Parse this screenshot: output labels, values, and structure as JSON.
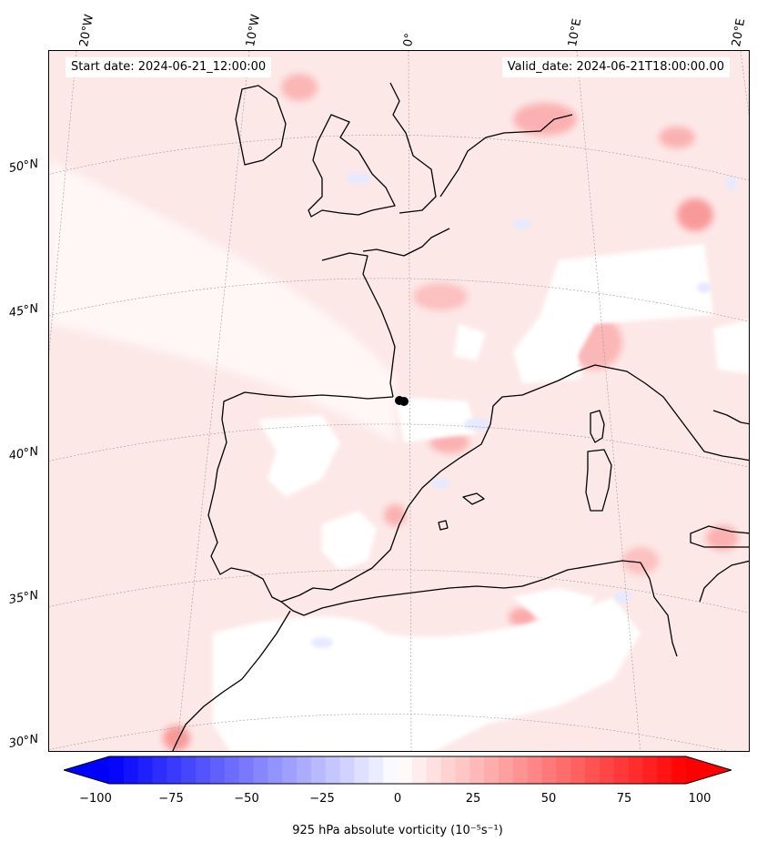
{
  "header": {
    "start_date": "Start date: 2024-06-21_12:00:00",
    "valid_date": "Valid_date: 2024-06-21T18:00:00.00"
  },
  "lon_labels": [
    "20°W",
    "10°W",
    "0°",
    "10°E",
    "20°E"
  ],
  "lat_labels": [
    "50°N",
    "45°N",
    "40°N",
    "35°N",
    "30°N"
  ],
  "colorbar": {
    "ticks": [
      "−100",
      "−75",
      "−50",
      "−25",
      "0",
      "25",
      "50",
      "75",
      "100"
    ],
    "title": "925 hPa absolute vorticity (10⁻⁵s⁻¹)",
    "min": -100,
    "max": 100,
    "neg_color": "#0000ff",
    "pos_color": "#ff0000",
    "extend": "both"
  },
  "map": {
    "projection": "conic",
    "background_color": "#fde6e6",
    "coastline_color": "#000000",
    "marker_label": "",
    "marker_color": "#000000"
  }
}
